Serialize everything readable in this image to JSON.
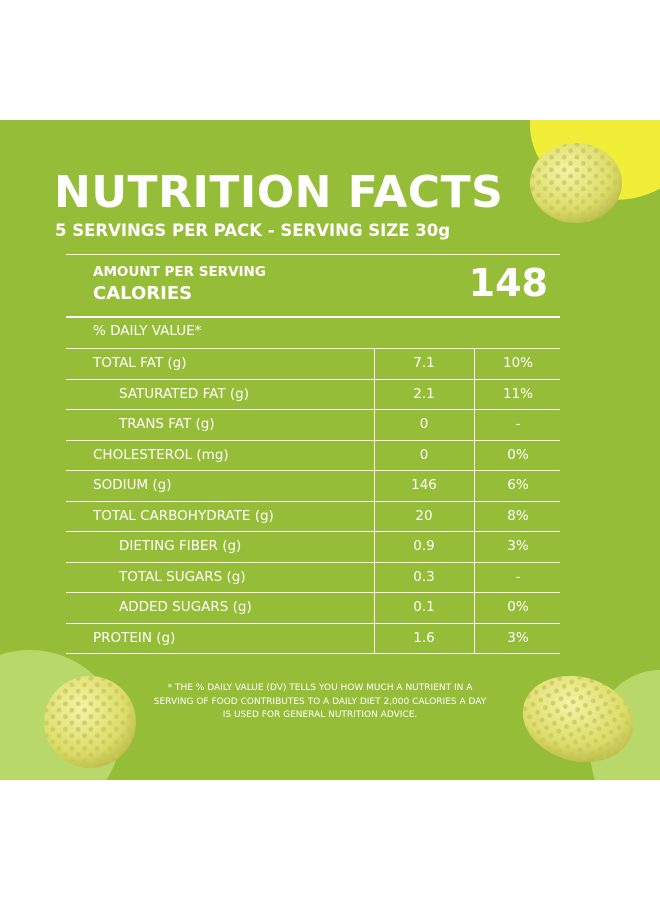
{
  "colors": {
    "background": "#96bd38",
    "accent_yellow": "#f1ee37",
    "accent_light_green": "#b9d86a",
    "text": "#ffffff"
  },
  "label": {
    "title": "NUTRITION FACTS",
    "subtitle": "5 SERVINGS PER PACK - SERVING SIZE 30g",
    "amount_per_serving": "AMOUNT PER SERVING",
    "calories_label": "CALORIES",
    "calories_value": "148",
    "daily_value_header": "% DAILY VALUE*",
    "nutrients": [
      {
        "name": "TOTAL FAT (g)",
        "amount": "7.1",
        "dv": "10%",
        "indent": false
      },
      {
        "name": "SATURATED FAT (g)",
        "amount": "2.1",
        "dv": "11%",
        "indent": true
      },
      {
        "name": "TRANS FAT (g)",
        "amount": "0",
        "dv": "-",
        "indent": true
      },
      {
        "name": "CHOLESTEROL (mg)",
        "amount": "0",
        "dv": "0%",
        "indent": false
      },
      {
        "name": "SODIUM (g)",
        "amount": "146",
        "dv": "6%",
        "indent": false
      },
      {
        "name": "TOTAL CARBOHYDRATE (g)",
        "amount": "20",
        "dv": "8%",
        "indent": false
      },
      {
        "name": "DIETING FIBER (g)",
        "amount": "0.9",
        "dv": "3%",
        "indent": true
      },
      {
        "name": "TOTAL SUGARS (g)",
        "amount": "0.3",
        "dv": "-",
        "indent": true
      },
      {
        "name": "ADDED SUGARS (g)",
        "amount": "0.1",
        "dv": "0%",
        "indent": true
      },
      {
        "name": "PROTEIN (g)",
        "amount": "1.6",
        "dv": "3%",
        "indent": false
      }
    ],
    "footnote": "* THE % DAILY VALUE (DV) TELLS YOU HOW MUCH A NUTRIENT IN A SERVING OF FOOD CONTRIBUTES TO A DAILY DIET 2,000 CALORIES A DAY IS USED FOR GENERAL NUTRITION ADVICE."
  },
  "decorations": {
    "snack_icon": "cereal-puff-icon"
  }
}
